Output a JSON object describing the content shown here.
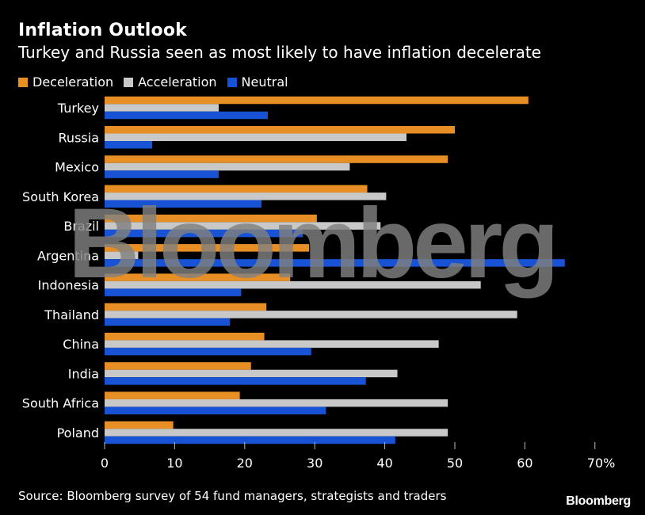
{
  "header": {
    "title": "Inflation Outlook",
    "subtitle": "Turkey and Russia seen as most likely to have inflation decelerate"
  },
  "legend": [
    {
      "label": "Deceleration",
      "color": "#e78f25"
    },
    {
      "label": "Acceleration",
      "color": "#c8c8c8"
    },
    {
      "label": "Neutral",
      "color": "#1753d4"
    }
  ],
  "footer": {
    "source": "Source: Bloomberg survey of 54 fund managers, strategists and traders",
    "brand": "Bloomberg"
  },
  "watermark": {
    "text": "Bloomberg"
  },
  "chart_data": {
    "type": "bar",
    "orientation": "horizontal",
    "title": "Inflation Outlook",
    "subtitle": "Turkey and Russia seen as most likely to have inflation decelerate",
    "xlabel": "",
    "ylabel": "",
    "xlim": [
      0,
      70
    ],
    "x_ticks": [
      0,
      10,
      20,
      30,
      40,
      50,
      60,
      70
    ],
    "x_tick_labels": [
      "0",
      "10",
      "20",
      "30",
      "40",
      "50",
      "60",
      "70%"
    ],
    "grid": false,
    "legend_position": "top-left",
    "categories": [
      "Turkey",
      "Russia",
      "Mexico",
      "South Korea",
      "Brazil",
      "Argentina",
      "Indonesia",
      "Thailand",
      "China",
      "India",
      "South Africa",
      "Poland"
    ],
    "series": [
      {
        "name": "Deceleration",
        "color": "#e78f25",
        "values": [
          60.5,
          50,
          49,
          37.5,
          30.3,
          29.2,
          26.5,
          23.1,
          22.8,
          20.9,
          19.3,
          9.8
        ]
      },
      {
        "name": "Acceleration",
        "color": "#c8c8c8",
        "values": [
          16.3,
          43.1,
          35,
          40.2,
          39.4,
          4.8,
          53.7,
          58.9,
          47.7,
          41.8,
          49,
          49
        ]
      },
      {
        "name": "Neutral",
        "color": "#1753d4",
        "values": [
          23.3,
          6.8,
          16.3,
          22.4,
          28.3,
          65.7,
          19.5,
          17.9,
          29.5,
          37.3,
          31.6,
          41.5
        ]
      }
    ]
  }
}
